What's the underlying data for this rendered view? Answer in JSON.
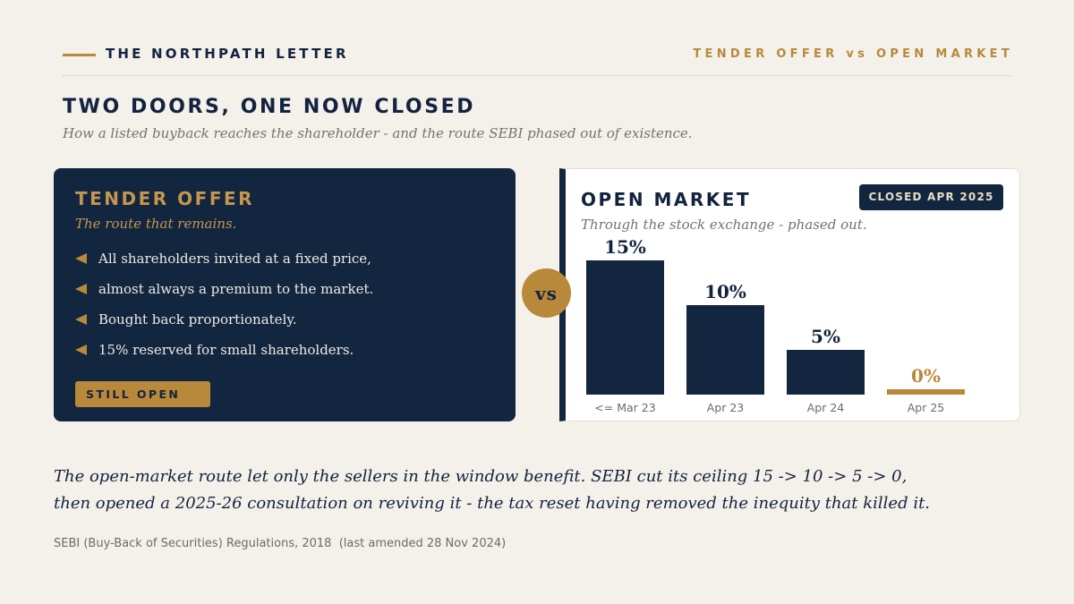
{
  "header": {
    "brand": "THE NORTHPATH LETTER",
    "kicker": "TENDER OFFER vs OPEN MARKET"
  },
  "title": "TWO DOORS, ONE NOW CLOSED",
  "subtitle": "How a listed buyback reaches the shareholder - and the route SEBI phased out of existence.",
  "tender": {
    "title": "TENDER OFFER",
    "subtitle": "The route that remains.",
    "bullets": [
      "All shareholders invited at a fixed price,",
      "almost always a premium to the market.",
      "Bought back proportionately.",
      "15% reserved for small shareholders."
    ],
    "badge": "STILL OPEN"
  },
  "vs": "vs",
  "open_market": {
    "title": "OPEN MARKET",
    "subtitle": "Through the stock exchange - phased out.",
    "badge": "CLOSED APR 2025"
  },
  "chart_data": {
    "type": "bar",
    "categories": [
      "<= Mar 23",
      "Apr 23",
      "Apr 24",
      "Apr 25"
    ],
    "values": [
      15,
      10,
      5,
      0
    ],
    "data_labels": [
      "15%",
      "10%",
      "5%",
      "0%"
    ],
    "ylim": [
      0,
      15
    ],
    "grid": false,
    "colors": [
      "#13263f",
      "#13263f",
      "#13263f",
      "#b8893a"
    ],
    "label_colors": [
      "#13233f",
      "#13233f",
      "#13233f",
      "#b8893a"
    ]
  },
  "footnote": {
    "line1": "The open-market route let only the sellers in the window benefit. SEBI cut its ceiling 15 -> 10 -> 5 -> 0,",
    "line2": "then opened a 2025-26 consultation on reviving it - the tax reset having removed the inequity that killed it."
  },
  "source": "SEBI (Buy-Back of Securities) Regulations, 2018  (last amended 28 Nov 2024)"
}
